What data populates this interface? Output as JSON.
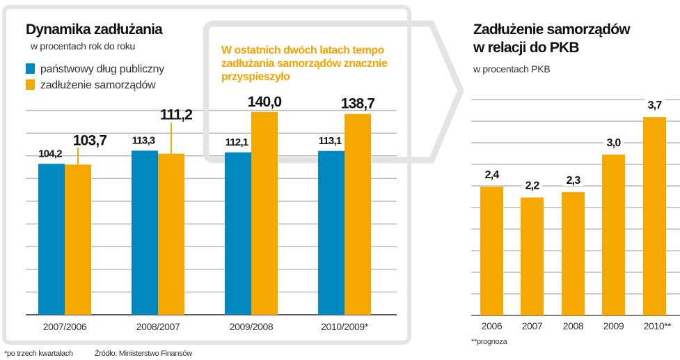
{
  "colors": {
    "blue": "#0088c0",
    "orange": "#f5a800",
    "grid": "#bbbbbb",
    "frame": "#e4e4e4"
  },
  "chart_data": [
    {
      "type": "bar",
      "title": "Dynamika zadłużania",
      "subtitle": "w procentach rok do roku",
      "categories": [
        "2007/2006",
        "2008/2007",
        "2009/2008",
        "2010/2009*"
      ],
      "series": [
        {
          "name": "państwowy dług publiczny",
          "color": "#0088c0",
          "values": [
            104.2,
            113.3,
            112.1,
            113.1
          ],
          "labels": [
            "104,2",
            "113,3",
            "112,1",
            "113,1"
          ]
        },
        {
          "name": "zadłużenie samorządów",
          "color": "#f5a800",
          "values": [
            103.7,
            111.2,
            140.0,
            138.7
          ],
          "labels": [
            "103,7",
            "111,2",
            "140,0",
            "138,7"
          ]
        }
      ],
      "annotation": "W ostatnich dwóch latach tempo zadłużania samorządów znacznie przyspieszyło",
      "annotation_lines": [
        "W ostatnich dwóch latach tempo",
        "zadłużania samorządów znacznie",
        "przyspieszyło"
      ],
      "grid": true,
      "legend": "top-left",
      "footnote": "*po trzech kwartałach",
      "source": "Źródło: Ministerstwo Finansów"
    },
    {
      "type": "bar",
      "title": "Zadłużenie samorządów w relacji do PKB",
      "title_lines": [
        "Zadłużenie samorządów",
        "w relacji do PKB"
      ],
      "subtitle": "w procentach PKB",
      "categories": [
        "2006",
        "2007",
        "2008",
        "2009",
        "2010**"
      ],
      "values": [
        2.4,
        2.2,
        2.3,
        3.0,
        3.7
      ],
      "labels": [
        "2,4",
        "2,2",
        "2,3",
        "3,0",
        "3,7"
      ],
      "color": "#f5a800",
      "grid": true,
      "footnote": "**prognoza"
    }
  ]
}
